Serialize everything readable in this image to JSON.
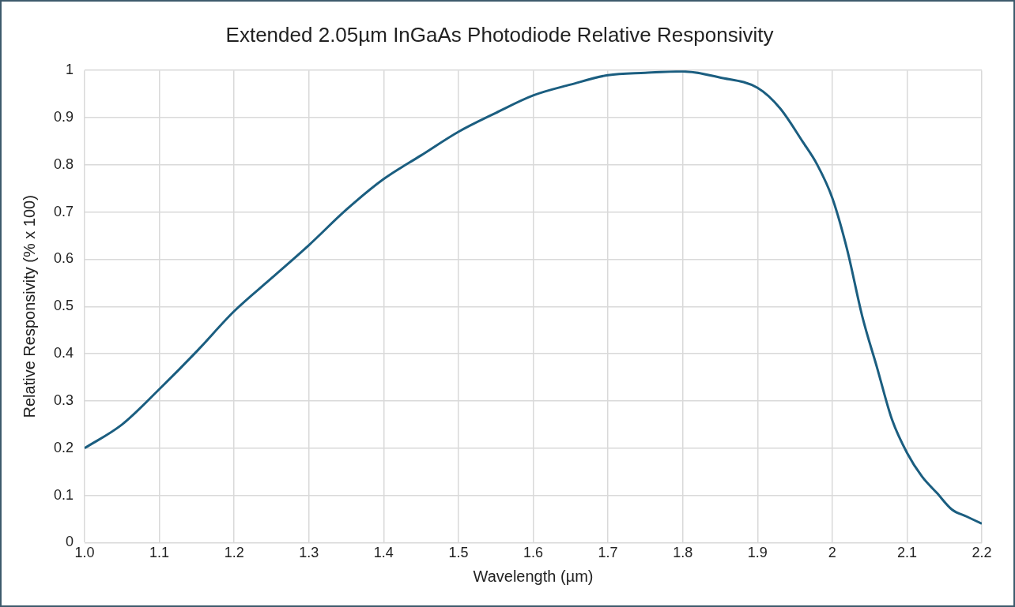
{
  "chart_data": {
    "type": "line",
    "title": "Extended 2.05µm InGaAs Photodiode Relative Responsivity",
    "xlabel": "Wavelength (µm)",
    "ylabel": "Relative Responsivity (% x 100)",
    "series": [
      {
        "color": "#1b5e80",
        "x": [
          1.0,
          1.05,
          1.1,
          1.15,
          1.2,
          1.25,
          1.3,
          1.35,
          1.4,
          1.45,
          1.5,
          1.55,
          1.6,
          1.65,
          1.7,
          1.75,
          1.8,
          1.85,
          1.9,
          1.93,
          1.96,
          1.98,
          2.0,
          2.02,
          2.04,
          2.06,
          2.08,
          2.1,
          2.12,
          2.14,
          2.16,
          2.18,
          2.2
        ],
        "values": [
          0.2,
          0.25,
          0.325,
          0.405,
          0.49,
          0.56,
          0.63,
          0.705,
          0.77,
          0.82,
          0.87,
          0.91,
          0.947,
          0.97,
          0.99,
          0.995,
          0.998,
          0.985,
          0.963,
          0.92,
          0.85,
          0.8,
          0.73,
          0.62,
          0.48,
          0.37,
          0.26,
          0.19,
          0.14,
          0.105,
          0.07,
          0.055,
          0.04
        ]
      }
    ],
    "xlim": [
      1.0,
      2.2
    ],
    "xticks": [
      {
        "value": 1.0,
        "label": "1.0"
      },
      1.1,
      1.2,
      1.3,
      1.4,
      1.5,
      1.6,
      1.7,
      1.8,
      1.9,
      {
        "value": 2.0,
        "label": "2"
      },
      2.1,
      2.2
    ],
    "ylim": [
      0,
      1
    ],
    "yticks": [
      0,
      0.1,
      0.2,
      0.3,
      0.4,
      0.5,
      0.6,
      0.7,
      0.8,
      0.9,
      1
    ],
    "grid": true,
    "legend": false,
    "marker": "none",
    "line_style": "solid"
  }
}
